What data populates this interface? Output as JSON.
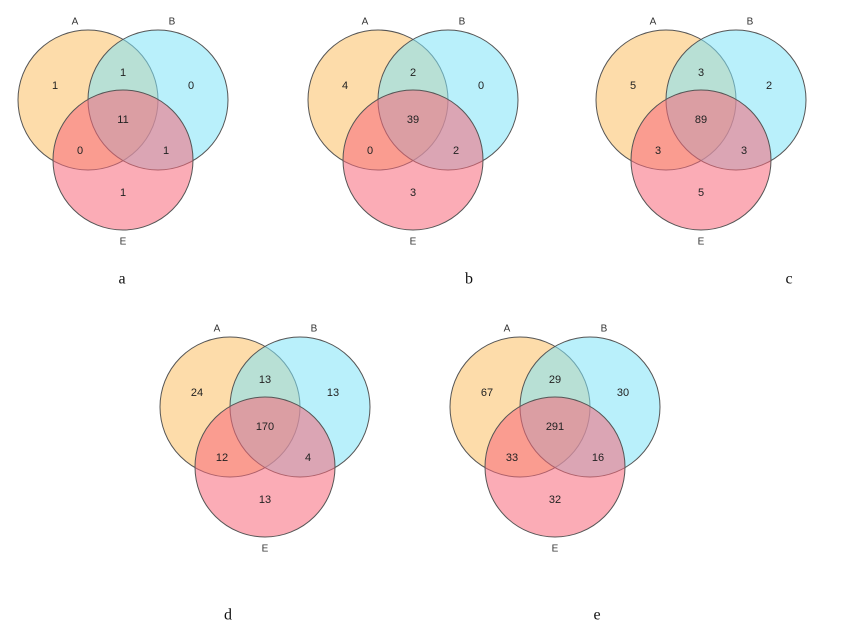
{
  "panels": [
    {
      "label": "a",
      "sets": [
        "A",
        "B",
        "E"
      ],
      "regions": {
        "a_only": 1,
        "ab": 1,
        "b_only": 0,
        "abe": 11,
        "ae": 0,
        "be": 1,
        "e_only": 1
      }
    },
    {
      "label": "b",
      "sets": [
        "A",
        "B",
        "E"
      ],
      "regions": {
        "a_only": 4,
        "ab": 2,
        "b_only": 0,
        "abe": 39,
        "ae": 0,
        "be": 2,
        "e_only": 3
      }
    },
    {
      "label": "c",
      "sets": [
        "A",
        "B",
        "E"
      ],
      "regions": {
        "a_only": 5,
        "ab": 3,
        "b_only": 2,
        "abe": 89,
        "ae": 3,
        "be": 3,
        "e_only": 5
      }
    },
    {
      "label": "d",
      "sets": [
        "A",
        "B",
        "E"
      ],
      "regions": {
        "a_only": 24,
        "ab": 13,
        "b_only": 13,
        "abe": 170,
        "ae": 12,
        "be": 4,
        "e_only": 13
      }
    },
    {
      "label": "e",
      "sets": [
        "A",
        "B",
        "E"
      ],
      "regions": {
        "a_only": 67,
        "ab": 29,
        "b_only": 30,
        "abe": 291,
        "ae": 33,
        "be": 16,
        "e_only": 32
      }
    }
  ]
}
